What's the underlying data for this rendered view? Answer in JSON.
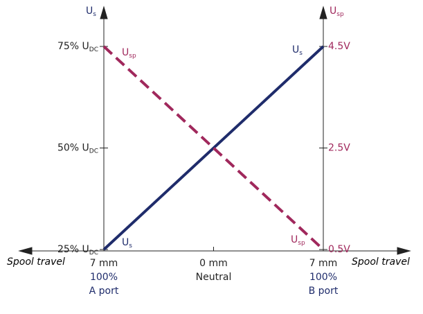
{
  "chart_data": {
    "type": "line",
    "x_label": "Spool travel",
    "x": [
      -7,
      7
    ],
    "xlim": [
      -7,
      7
    ],
    "xticks": [
      {
        "value": -7,
        "label": "7 mm"
      },
      {
        "value": 0,
        "label": "0 mm"
      },
      {
        "value": 7,
        "label": "7 mm"
      }
    ],
    "x_sublabels": [
      [
        "100%",
        "A port"
      ],
      [
        "Neutral"
      ],
      [
        "100%",
        "B port"
      ]
    ],
    "ylim": [
      25,
      75
    ],
    "yticks": [
      {
        "value": 25,
        "label": "25% U",
        "label_sub": "DC"
      },
      {
        "value": 50,
        "label": "50% U",
        "label_sub": "DC"
      },
      {
        "value": 75,
        "label": "75% U",
        "label_sub": "DC"
      }
    ],
    "y2lim": [
      0.5,
      4.5
    ],
    "y2ticks": [
      {
        "value": 0.5,
        "label": "0.5V"
      },
      {
        "value": 2.5,
        "label": "2.5V"
      },
      {
        "value": 4.5,
        "label": "4.5V"
      }
    ],
    "series": [
      {
        "name": "U",
        "name_sub": "s",
        "color": "#1f2c6b",
        "dashed": false,
        "values": [
          25,
          75
        ]
      },
      {
        "name": "U",
        "name_sub": "sp",
        "color": "#a0285c",
        "dashed": true,
        "axis": "y2",
        "values": [
          4.5,
          0.5
        ]
      }
    ]
  }
}
